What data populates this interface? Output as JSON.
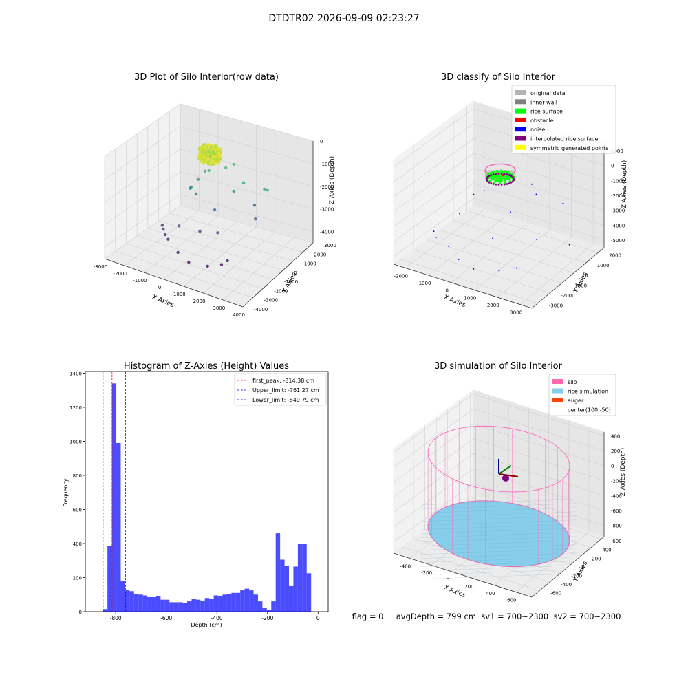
{
  "suptitle": "DTDTR02 2026-09-09 02:23:27",
  "status_line": "flag = 0     avgDepth = 799 cm  sv1 = 700~2300  sv2 = 700~2300",
  "chart_data": [
    {
      "type": "scatter3d",
      "title": "3D Plot of Silo Interior(row data)",
      "xlabel": "X Axies",
      "ylabel": "Y Axies",
      "zlabel": "Z Axies (Depth)",
      "xlim": [
        -3000,
        4000
      ],
      "ylim": [
        -4000,
        3000
      ],
      "zlim": [
        -4500,
        0
      ],
      "xticks": [
        "-3000",
        "-2000",
        "-1000",
        "0",
        "1000",
        "2000",
        "3000",
        "4000"
      ],
      "yticks": [
        "-4000",
        "-3000",
        "-2000",
        "-1000",
        "0",
        "1000",
        "2000",
        "3000"
      ],
      "zticks": [
        "0",
        "-1000",
        "-2000",
        "-3000",
        "-4000"
      ],
      "colormap": "viridis",
      "points": [
        {
          "x": 300,
          "y": 0,
          "z": -400
        },
        {
          "x": 450,
          "y": 100,
          "z": -350
        },
        {
          "x": 150,
          "y": -100,
          "z": -450
        },
        {
          "x": 350,
          "y": 200,
          "z": -500
        },
        {
          "x": 500,
          "y": -50,
          "z": -420
        },
        {
          "x": 250,
          "y": 150,
          "z": -380
        },
        {
          "x": 400,
          "y": -150,
          "z": -470
        },
        {
          "x": 200,
          "y": 50,
          "z": -430
        },
        {
          "x": 320,
          "y": -80,
          "z": -390
        },
        {
          "x": 100,
          "y": 300,
          "z": -1400
        },
        {
          "x": -200,
          "y": 500,
          "z": -1600
        },
        {
          "x": 700,
          "y": 800,
          "z": -1300
        },
        {
          "x": 900,
          "y": 1200,
          "z": -1250
        },
        {
          "x": -400,
          "y": 200,
          "z": -1900
        },
        {
          "x": 1200,
          "y": 600,
          "z": -2100
        },
        {
          "x": 1500,
          "y": 1000,
          "z": -1800
        },
        {
          "x": 2600,
          "y": 900,
          "z": -1700
        },
        {
          "x": 2700,
          "y": 1000,
          "z": -1750
        },
        {
          "x": -800,
          "y": 300,
          "z": -2400
        },
        {
          "x": -600,
          "y": -200,
          "z": -2200
        },
        {
          "x": 800,
          "y": -500,
          "z": -2600
        },
        {
          "x": 1800,
          "y": 1500,
          "z": -2900
        },
        {
          "x": 2200,
          "y": 800,
          "z": -3100
        },
        {
          "x": -500,
          "y": -1500,
          "z": -3300
        },
        {
          "x": -1500,
          "y": -1200,
          "z": -3700
        },
        {
          "x": -1400,
          "y": -1300,
          "z": -3800
        },
        {
          "x": -1200,
          "y": -1500,
          "z": -3900
        },
        {
          "x": -1000,
          "y": -1600,
          "z": -4000
        },
        {
          "x": -200,
          "y": -2200,
          "z": -4100
        },
        {
          "x": 500,
          "y": -2500,
          "z": -4200
        },
        {
          "x": 1300,
          "y": -2200,
          "z": -4250
        },
        {
          "x": 1700,
          "y": -1600,
          "z": -4300
        },
        {
          "x": 1900,
          "y": -1400,
          "z": -4150
        },
        {
          "x": 300,
          "y": -1000,
          "z": -3500
        },
        {
          "x": 1100,
          "y": -800,
          "z": -3400
        },
        {
          "x": -700,
          "y": 600,
          "z": -2800
        }
      ]
    },
    {
      "type": "scatter3d",
      "title": "3D classify of Silo Interior",
      "xlabel": "X Axies",
      "ylabel": "Y Axies",
      "zlabel": "Z Axies (Depth)",
      "xlim": [
        -2500,
        3500
      ],
      "ylim": [
        -3500,
        2500
      ],
      "zlim": [
        -5500,
        1500
      ],
      "xticks": [
        "-2000",
        "-1000",
        "0",
        "1000",
        "2000",
        "3000"
      ],
      "yticks": [
        "-3000",
        "-2000",
        "-1000",
        "0",
        "1000",
        "2000"
      ],
      "zticks": [
        "1000",
        "0",
        "-1000",
        "-2000",
        "-3000",
        "-4000",
        "-5000"
      ],
      "legend_position": "top-right",
      "legend": [
        {
          "label": "original data",
          "color": "#b3b3b3"
        },
        {
          "label": "inner wall",
          "color": "#808080"
        },
        {
          "label": "rice surface",
          "color": "#00ff00"
        },
        {
          "label": "obstacle",
          "color": "#ff0000"
        },
        {
          "label": "noise",
          "color": "#0000ff"
        },
        {
          "label": "interpolated rice surface",
          "color": "#800080"
        },
        {
          "label": "symmetric generated points",
          "color": "#ffff00"
        }
      ],
      "noise_points": [
        {
          "x": 1200,
          "y": 900,
          "z": -1300
        },
        {
          "x": 1500,
          "y": 700,
          "z": -1700
        },
        {
          "x": -500,
          "y": 200,
          "z": -2100
        },
        {
          "x": -800,
          "y": -100,
          "z": -2300
        },
        {
          "x": 900,
          "y": -300,
          "z": -2500
        },
        {
          "x": 2400,
          "y": 1200,
          "z": -2200
        },
        {
          "x": -1800,
          "y": -1500,
          "z": -4300
        },
        {
          "x": -1600,
          "y": -1700,
          "z": -4500
        },
        {
          "x": -1000,
          "y": -1800,
          "z": -4700
        },
        {
          "x": -300,
          "y": -2300,
          "z": -4900
        },
        {
          "x": 500,
          "y": -2600,
          "z": -4950
        },
        {
          "x": 1400,
          "y": -2200,
          "z": -4900
        },
        {
          "x": 1900,
          "y": -1700,
          "z": -4800
        },
        {
          "x": 3200,
          "y": 200,
          "z": -3900
        },
        {
          "x": 600,
          "y": -1200,
          "z": -3800
        },
        {
          "x": 2300,
          "y": -800,
          "z": -3300
        },
        {
          "x": -1200,
          "y": -500,
          "z": -3500
        },
        {
          "x": 100,
          "y": 1300,
          "z": -1500
        }
      ]
    },
    {
      "type": "bar",
      "title": "Histogram of Z-Axies (Height) Values",
      "xlabel": "Depth (cm)",
      "ylabel": "Frequency",
      "xlim": [
        -920,
        40
      ],
      "ylim": [
        0,
        1410
      ],
      "xticks": [
        "-800",
        "-600",
        "-400",
        "-200",
        "0"
      ],
      "yticks": [
        "0",
        "200",
        "400",
        "600",
        "800",
        "1000",
        "1200",
        "1400"
      ],
      "bar_color": "#0000ff",
      "bin_start": -850,
      "bin_width": 17.5,
      "values": [
        15,
        385,
        1340,
        990,
        180,
        125,
        120,
        105,
        100,
        95,
        85,
        85,
        90,
        70,
        70,
        55,
        55,
        55,
        50,
        60,
        75,
        70,
        65,
        80,
        75,
        95,
        90,
        100,
        105,
        110,
        110,
        125,
        135,
        125,
        100,
        60,
        20,
        10,
        60,
        460,
        305,
        270,
        150,
        265,
        400,
        400,
        225
      ],
      "legend_position": "top-right",
      "vlines": [
        {
          "label": "first_peak: -814.38 cm",
          "x": -814.38,
          "color": "#ff0000"
        },
        {
          "label": "Upper_limit: -761.27 cm",
          "x": -761.27,
          "color": "#0000ff"
        },
        {
          "label": "Lower_limit: -849.79 cm",
          "x": -849.79,
          "color": "#0000ff"
        }
      ]
    },
    {
      "type": "surface3d",
      "title": "3D simulation of Silo Interior",
      "xlabel": "X Axies",
      "ylabel": "Y Axies",
      "zlabel": "Z Axies (Depth)",
      "xlim": [
        -550,
        750
      ],
      "ylim": [
        -750,
        650
      ],
      "zlim": [
        -950,
        450
      ],
      "xticks": [
        "-400",
        "-200",
        "0",
        "200",
        "400",
        "600"
      ],
      "yticks": [
        "-600",
        "-400",
        "-200",
        "0",
        "200",
        "400",
        "600"
      ],
      "zticks": [
        "400",
        "200",
        "0",
        "-200",
        "-400",
        "-600",
        "-800"
      ],
      "legend_position": "top-right",
      "legend": [
        {
          "label": "silo",
          "color": "#ff69b4"
        },
        {
          "label": "rice simulation",
          "color": "#87ceeb"
        },
        {
          "label": "auger",
          "color": "#ff4500"
        },
        {
          "label": "center(100,-50)",
          "color": ""
        }
      ],
      "silo": {
        "center_x": 100,
        "center_y": -50,
        "radius": 600,
        "z_top": 200,
        "z_bottom": -800
      },
      "rice_depth": -799,
      "center_point": {
        "x": 100,
        "y": -50,
        "z": 0
      }
    }
  ]
}
